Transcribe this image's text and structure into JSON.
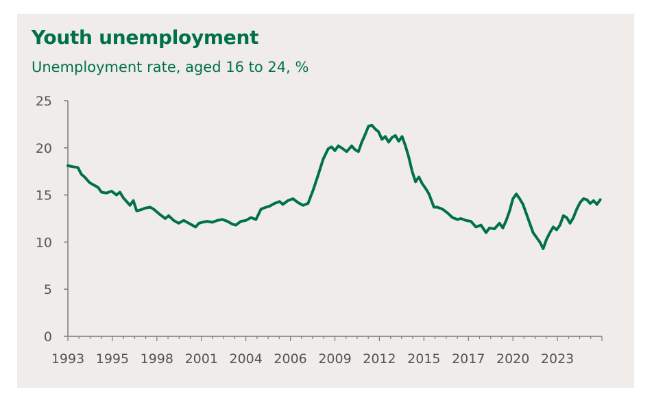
{
  "chart_data": {
    "type": "line",
    "title": "Youth unemployment",
    "subtitle": "Unemployment rate, aged 16 to 24, %",
    "xlabel": "",
    "ylabel": "",
    "ylim": [
      0,
      25
    ],
    "yticks": [
      0,
      5,
      10,
      15,
      20,
      25
    ],
    "xlim": [
      1993.0,
      2024.8
    ],
    "xtick_labels": [
      "1993",
      "1995",
      "1998",
      "2001",
      "2004",
      "2006",
      "2009",
      "2012",
      "2015",
      "2017",
      "2020",
      "2023"
    ],
    "grid": false,
    "legend": "none",
    "line_color": "#00704a",
    "series": [
      {
        "x": [
          1993.0,
          1993.3,
          1993.6,
          1993.8,
          1994.0,
          1994.3,
          1994.5,
          1994.8,
          1995.0,
          1995.3,
          1995.6,
          1995.9,
          1996.1,
          1996.3,
          1996.5,
          1996.7,
          1996.9,
          1997.1,
          1997.3,
          1997.6,
          1997.9,
          1998.1,
          1998.3,
          1998.5,
          1998.8,
          1999.0,
          1999.3,
          1999.6,
          1999.9,
          2000.1,
          2000.4,
          2000.6,
          2000.8,
          2001.0,
          2001.3,
          2001.6,
          2001.9,
          2002.2,
          2002.5,
          2002.8,
          2003.0,
          2003.3,
          2003.6,
          2003.9,
          2004.2,
          2004.5,
          2004.8,
          2005.0,
          2005.3,
          2005.6,
          2005.8,
          2006.1,
          2006.4,
          2006.7,
          2007.0,
          2007.3,
          2007.6,
          2007.9,
          2008.2,
          2008.5,
          2008.7,
          2008.9,
          2009.1,
          2009.3,
          2009.6,
          2009.9,
          2010.1,
          2010.3,
          2010.5,
          2010.7,
          2010.9,
          2011.1,
          2011.3,
          2011.5,
          2011.7,
          2011.9,
          2012.1,
          2012.3,
          2012.5,
          2012.7,
          2012.9,
          2013.1,
          2013.3,
          2013.5,
          2013.7,
          2013.9,
          2014.1,
          2014.3,
          2014.5,
          2014.8,
          2015.0,
          2015.3,
          2015.6,
          2015.9,
          2016.2,
          2016.4,
          2016.7,
          2017.0,
          2017.3,
          2017.6,
          2017.9,
          2018.1,
          2018.4,
          2018.7,
          2018.9,
          2019.1,
          2019.3,
          2019.5,
          2019.7,
          2019.9,
          2020.1,
          2020.3,
          2020.5,
          2020.7,
          2020.9,
          2021.1,
          2021.3,
          2021.5,
          2021.7,
          2021.9,
          2022.1,
          2022.3,
          2022.5,
          2022.7,
          2022.9,
          2023.1,
          2023.3,
          2023.5,
          2023.7,
          2023.9,
          2024.1,
          2024.3,
          2024.5,
          2024.7
        ],
        "values": [
          18.1,
          18.0,
          17.9,
          17.2,
          16.9,
          16.3,
          16.1,
          15.8,
          15.3,
          15.2,
          15.4,
          15.0,
          15.3,
          14.7,
          14.3,
          13.9,
          14.4,
          13.3,
          13.4,
          13.6,
          13.7,
          13.5,
          13.2,
          12.9,
          12.5,
          12.8,
          12.3,
          12.0,
          12.3,
          12.1,
          11.8,
          11.6,
          12.0,
          12.1,
          12.2,
          12.1,
          12.3,
          12.4,
          12.2,
          11.9,
          11.8,
          12.2,
          12.3,
          12.6,
          12.4,
          13.5,
          13.7,
          13.8,
          14.1,
          14.3,
          14.0,
          14.4,
          14.6,
          14.2,
          13.9,
          14.1,
          15.5,
          17.1,
          18.8,
          19.9,
          20.1,
          19.7,
          20.2,
          20.0,
          19.6,
          20.2,
          19.8,
          19.6,
          20.6,
          21.4,
          22.3,
          22.4,
          22.0,
          21.7,
          20.9,
          21.2,
          20.6,
          21.1,
          21.3,
          20.7,
          21.2,
          20.2,
          19.0,
          17.5,
          16.4,
          16.9,
          16.2,
          15.7,
          15.1,
          13.7,
          13.7,
          13.5,
          13.1,
          12.6,
          12.4,
          12.5,
          12.3,
          12.2,
          11.6,
          11.8,
          11.0,
          11.5,
          11.4,
          12.0,
          11.5,
          12.3,
          13.3,
          14.6,
          15.1,
          14.6,
          14.0,
          13.0,
          12.0,
          11.0,
          10.5,
          10.0,
          9.3,
          10.3,
          11.0,
          11.6,
          11.3,
          11.8,
          12.8,
          12.6,
          12.0,
          12.6,
          13.5,
          14.2,
          14.6,
          14.5,
          14.1,
          14.4,
          14.0,
          14.5
        ]
      }
    ]
  }
}
